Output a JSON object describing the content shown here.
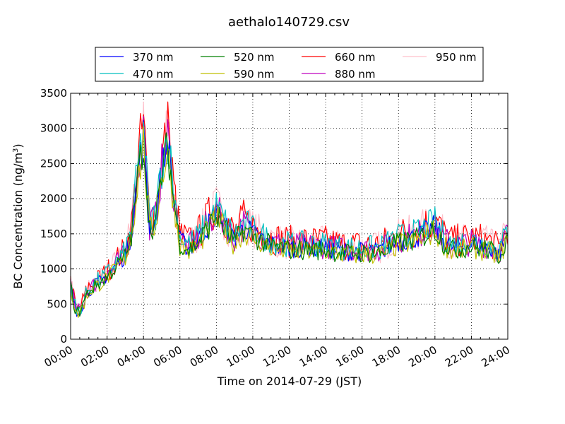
{
  "chart_data": {
    "type": "line",
    "title": "aethalo140729.csv",
    "xlabel": "Time on 2014-07-29 (JST)",
    "ylabel": "BC Concentration (ng/m",
    "ylabel_sup": "3",
    "ylabel_suffix": ")",
    "xlim": [
      "00:00",
      "24:00"
    ],
    "ylim": [
      0,
      3500
    ],
    "x_ticks": [
      "00:00",
      "02:00",
      "04:00",
      "06:00",
      "08:00",
      "10:00",
      "12:00",
      "14:00",
      "16:00",
      "18:00",
      "20:00",
      "22:00",
      "24:00"
    ],
    "y_ticks": [
      0,
      500,
      1000,
      1500,
      2000,
      2500,
      3000,
      3500
    ],
    "grid": true,
    "legend_position": "top",
    "series": [
      {
        "name": "370 nm",
        "color": "#0000ff"
      },
      {
        "name": "470 nm",
        "color": "#00bfbf"
      },
      {
        "name": "520 nm",
        "color": "#008000"
      },
      {
        "name": "590 nm",
        "color": "#bfbf00"
      },
      {
        "name": "660 nm",
        "color": "#ff0000"
      },
      {
        "name": "880 nm",
        "color": "#bf00bf"
      },
      {
        "name": "950 nm",
        "color": "#ffc0cb"
      }
    ],
    "anchors": {
      "time": [
        "00:00",
        "00:20",
        "00:40",
        "01:00",
        "01:30",
        "02:00",
        "02:40",
        "03:00",
        "03:20",
        "03:40",
        "04:00",
        "04:20",
        "04:40",
        "05:00",
        "05:20",
        "05:40",
        "06:00",
        "06:30",
        "07:00",
        "07:30",
        "08:00",
        "08:30",
        "09:00",
        "09:30",
        "10:00",
        "11:00",
        "12:00",
        "13:00",
        "14:00",
        "15:00",
        "16:00",
        "17:00",
        "18:00",
        "19:00",
        "20:00",
        "20:30",
        "21:00",
        "22:00",
        "23:00",
        "23:30",
        "24:00"
      ],
      "bc": [
        750,
        350,
        500,
        700,
        800,
        900,
        1100,
        1200,
        1500,
        2300,
        2900,
        1600,
        1700,
        2400,
        2800,
        2000,
        1400,
        1300,
        1400,
        1600,
        1800,
        1600,
        1400,
        1600,
        1500,
        1350,
        1300,
        1300,
        1300,
        1250,
        1250,
        1250,
        1400,
        1450,
        1600,
        1400,
        1300,
        1350,
        1300,
        1200,
        1500
      ]
    }
  }
}
